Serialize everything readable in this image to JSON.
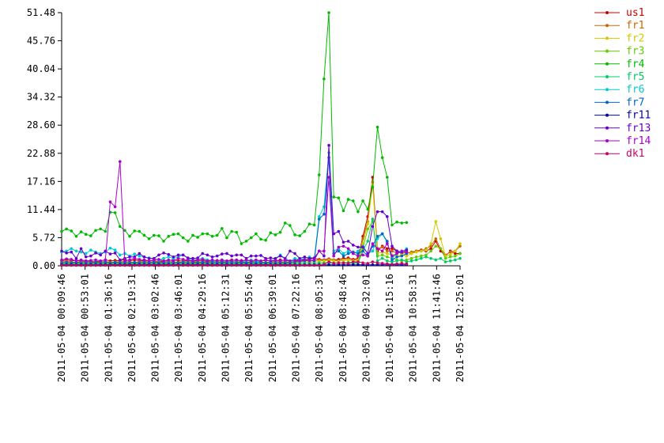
{
  "chart_data": {
    "type": "line",
    "grid": false,
    "legend_position": "right",
    "ylim": [
      0,
      51.48
    ],
    "y_ticks": [
      "0.00",
      "5.72",
      "11.44",
      "17.16",
      "22.88",
      "28.60",
      "34.32",
      "40.04",
      "45.76",
      "51.48"
    ],
    "x_tick_labels": [
      "2011-05-04 00:09:46",
      "2011-05-04 00:53:01",
      "2011-05-04 01:36:16",
      "2011-05-04 02:19:31",
      "2011-05-04 03:02:46",
      "2011-05-04 03:46:01",
      "2011-05-04 04:29:16",
      "2011-05-04 05:12:31",
      "2011-05-04 05:55:46",
      "2011-05-04 06:39:01",
      "2011-05-04 07:22:16",
      "2011-05-04 08:05:31",
      "2011-05-04 08:48:46",
      "2011-05-04 09:32:01",
      "2011-05-04 10:15:16",
      "2011-05-04 10:58:31",
      "2011-05-04 11:41:46",
      "2011-05-04 12:25:01"
    ],
    "x_time_start": "2011-05-04 00:09:46",
    "x_interval_seconds": 519,
    "series": [
      {
        "name": "us1",
        "color": "#cc0000",
        "values": [
          1.0,
          1.2,
          1.0,
          1.1,
          0.9,
          1.0,
          0.9,
          0.8,
          1.0,
          1.2,
          1.0,
          1.1,
          1.0,
          1.3,
          1.0,
          1.2,
          1.0,
          1.1,
          1.0,
          1.0,
          0.9,
          1.0,
          1.1,
          1.2,
          1.0,
          1.0,
          1.1,
          1.0,
          1.0,
          1.0,
          0.9,
          1.0,
          1.1,
          0.9,
          1.0,
          1.2,
          1.0,
          1.1,
          1.0,
          1.0,
          0.9,
          1.0,
          1.1,
          1.0,
          1.0,
          1.2,
          1.0,
          1.0,
          1.1,
          1.3,
          1.2,
          1.4,
          1.5,
          1.3,
          1.2,
          1.4,
          1.2,
          1.3,
          1.5,
          1.6,
          1.3,
          1.5,
          6.0,
          10.0,
          18.0,
          3.0,
          4.0,
          3.5,
          3.5,
          3.0,
          2.5,
          2.8,
          2.5,
          3.0,
          3.2,
          3.0,
          3.5,
          5.0,
          3.0,
          2.0,
          3.0,
          2.5,
          2.5
        ]
      },
      {
        "name": "fr1",
        "color": "#cc6600",
        "values": [
          0.8,
          0.9,
          0.8,
          0.7,
          0.8,
          0.9,
          0.8,
          0.7,
          0.8,
          0.9,
          0.7,
          0.8,
          0.8,
          0.9,
          0.8,
          0.7,
          0.8,
          0.9,
          0.8,
          0.7,
          0.8,
          0.8,
          0.9,
          0.8,
          0.7,
          0.8,
          0.9,
          0.8,
          0.8,
          0.7,
          0.8,
          0.9,
          0.8,
          0.7,
          0.8,
          0.9,
          0.8,
          0.8,
          0.7,
          0.8,
          0.9,
          0.8,
          0.7,
          0.8,
          0.9,
          0.8,
          0.8,
          0.7,
          0.9,
          1.0,
          1.1,
          1.2,
          1.0,
          1.2,
          1.1,
          1.3,
          1.2,
          1.0,
          1.2,
          1.3,
          1.1,
          1.2,
          5.5,
          9.0,
          17.0,
          3.5,
          3.8,
          3.0,
          3.0,
          2.6,
          2.8,
          2.5,
          2.8,
          3.0,
          3.0,
          3.5,
          4.0,
          5.5,
          3.5,
          2.2,
          2.8,
          3.0,
          4.0
        ]
      },
      {
        "name": "fr2",
        "color": "#cccc00",
        "values": [
          0.5,
          0.6,
          0.5,
          0.6,
          0.5,
          0.6,
          0.5,
          0.6,
          0.5,
          0.6,
          0.5,
          0.6,
          0.5,
          0.6,
          0.5,
          0.6,
          0.5,
          0.6,
          0.5,
          0.6,
          0.5,
          0.6,
          0.5,
          0.6,
          0.5,
          0.6,
          0.5,
          0.6,
          0.5,
          0.6,
          0.5,
          0.6,
          0.5,
          0.6,
          0.5,
          0.6,
          0.5,
          0.6,
          0.5,
          0.6,
          0.5,
          0.6,
          0.5,
          0.6,
          0.5,
          0.6,
          0.5,
          0.6,
          0.7,
          0.8,
          0.9,
          0.8,
          1.0,
          0.9,
          1.0,
          1.1,
          1.0,
          0.9,
          1.1,
          1.2,
          1.0,
          1.1,
          4.5,
          8.5,
          16.5,
          2.5,
          2.8,
          2.5,
          2.2,
          2.0,
          2.2,
          2.0,
          2.5,
          2.8,
          3.0,
          3.2,
          4.5,
          9.0,
          5.5,
          2.0,
          2.2,
          3.0,
          4.5
        ]
      },
      {
        "name": "fr3",
        "color": "#66cc00",
        "values": [
          0.3,
          0.4,
          0.3,
          0.4,
          0.3,
          0.4,
          0.3,
          0.4,
          0.3,
          0.4,
          0.3,
          0.4,
          0.3,
          0.4,
          0.3,
          0.4,
          0.3,
          0.4,
          0.3,
          0.4,
          0.3,
          0.4,
          0.3,
          0.4,
          0.3,
          0.4,
          0.3,
          0.4,
          0.3,
          0.4,
          0.3,
          0.4,
          0.3,
          0.4,
          0.3,
          0.4,
          0.3,
          0.4,
          0.3,
          0.4,
          0.3,
          0.4,
          0.3,
          0.4,
          0.3,
          0.4,
          0.3,
          0.4,
          0.4,
          0.5,
          0.6,
          0.5,
          0.6,
          0.5,
          0.6,
          0.7,
          0.6,
          0.5,
          0.6,
          0.7,
          0.6,
          0.7,
          3.5,
          7.5,
          9.0,
          2.0,
          2.2,
          1.8,
          1.5,
          1.2,
          1.0,
          1.2,
          1.5,
          1.8,
          2.0,
          2.2,
          3.0,
          4.0,
          3.5,
          1.5,
          1.8,
          2.0,
          2.5
        ]
      },
      {
        "name": "fr4",
        "color": "#00bb00",
        "values": [
          7.0,
          7.5,
          7.1,
          6.0,
          6.9,
          6.4,
          6.1,
          7.2,
          7.5,
          7.0,
          10.9,
          10.8,
          8.0,
          7.2,
          6.0,
          7.1,
          7.0,
          6.2,
          5.5,
          6.2,
          6.1,
          5.0,
          6.0,
          6.4,
          6.5,
          5.7,
          5.0,
          6.2,
          5.8,
          6.5,
          6.5,
          6.0,
          6.2,
          7.6,
          5.7,
          7.0,
          6.8,
          4.5,
          5.0,
          5.7,
          6.5,
          5.4,
          5.2,
          6.7,
          6.3,
          6.8,
          8.7,
          8.2,
          6.3,
          6.1,
          7.0,
          8.5,
          8.3,
          18.5,
          38.0,
          51.48,
          14.0,
          13.8,
          11.2,
          13.5,
          13.2,
          11.0,
          13.2,
          11.5,
          16.0,
          28.2,
          22.0,
          18.0,
          8.3,
          8.9,
          8.7,
          8.8
        ]
      },
      {
        "name": "fr5",
        "color": "#00cc66",
        "values": [
          0.4,
          0.5,
          0.4,
          0.5,
          0.4,
          0.5,
          0.4,
          0.5,
          0.4,
          0.5,
          0.4,
          0.5,
          0.4,
          0.5,
          0.4,
          0.5,
          0.4,
          0.5,
          0.4,
          0.5,
          0.4,
          0.5,
          0.4,
          0.5,
          0.4,
          0.5,
          0.4,
          0.5,
          0.4,
          0.5,
          0.4,
          0.5,
          0.4,
          0.5,
          0.4,
          0.5,
          0.4,
          0.5,
          0.4,
          0.5,
          0.4,
          0.5,
          0.4,
          0.5,
          0.4,
          0.5,
          0.4,
          0.5,
          0.5,
          0.6,
          0.5,
          0.6,
          0.5,
          0.6,
          0.5,
          0.6,
          0.5,
          0.6,
          0.5,
          0.6,
          0.5,
          0.6,
          3.0,
          5.0,
          9.5,
          1.0,
          1.5,
          1.0,
          0.8,
          1.0,
          1.2,
          0.8,
          1.0,
          1.2,
          1.5,
          1.8,
          1.5,
          1.2,
          1.5,
          0.8,
          1.0,
          1.2,
          1.5
        ]
      },
      {
        "name": "fr6",
        "color": "#00cccc",
        "values": [
          2.8,
          3.0,
          3.5,
          3.0,
          2.8,
          2.5,
          3.2,
          2.8,
          2.5,
          2.8,
          3.6,
          3.2,
          2.2,
          2.5,
          2.0,
          2.4,
          2.0,
          1.8,
          1.6,
          1.5,
          1.2,
          1.5,
          1.8,
          1.5,
          1.8,
          2.2,
          1.5,
          1.2,
          1.3,
          1.5,
          1.2,
          1.0,
          0.9,
          1.2,
          0.8,
          1.0,
          1.2,
          0.8,
          1.0,
          1.2,
          0.8,
          1.0,
          1.2,
          1.0,
          1.5,
          2.2,
          1.5,
          1.0,
          1.5,
          1.3,
          1.5,
          1.8,
          1.5,
          10.0,
          12.0,
          23.0,
          3.0,
          3.5,
          2.5,
          3.0,
          2.5,
          3.0,
          4.0,
          2.5,
          3.0,
          5.5,
          6.5,
          4.8,
          1.5,
          2.5,
          2.8,
          3.5
        ]
      },
      {
        "name": "fr7",
        "color": "#0066cc",
        "values": [
          0.6,
          0.7,
          0.6,
          0.7,
          0.6,
          0.7,
          0.6,
          0.7,
          0.6,
          0.7,
          0.6,
          0.7,
          0.6,
          0.7,
          0.6,
          0.7,
          0.6,
          0.7,
          0.6,
          0.7,
          0.6,
          0.7,
          0.6,
          0.7,
          0.6,
          0.7,
          0.6,
          0.7,
          0.6,
          0.7,
          0.6,
          0.7,
          0.6,
          0.7,
          0.6,
          0.7,
          0.6,
          0.7,
          0.6,
          0.7,
          0.6,
          0.7,
          0.6,
          0.7,
          0.6,
          0.7,
          0.6,
          0.7,
          0.8,
          0.9,
          1.0,
          1.1,
          1.0,
          9.5,
          10.5,
          22.0,
          2.5,
          3.0,
          2.0,
          2.5,
          2.8,
          2.5,
          3.0,
          2.0,
          4.0,
          6.0,
          6.5,
          5.0,
          1.2,
          1.8,
          2.0,
          2.5
        ]
      },
      {
        "name": "fr11",
        "color": "#0000aa",
        "values": [
          0.2,
          0.2,
          0.2,
          0.2,
          0.2,
          0.2,
          0.2,
          0.2,
          0.2,
          0.2,
          0.2,
          0.2,
          0.2,
          0.2,
          0.2,
          0.2,
          0.2,
          0.2,
          0.2,
          0.2,
          0.2,
          0.2,
          0.2,
          0.2,
          0.2,
          0.2,
          0.2,
          0.2,
          0.2,
          0.2,
          0.2,
          0.2,
          0.2,
          0.2,
          0.2,
          0.2,
          0.2,
          0.2,
          0.2,
          0.2,
          0.2,
          0.2,
          0.2,
          0.2,
          0.2,
          0.2,
          0.2,
          0.2,
          0.2,
          0.2,
          0.2,
          0.2,
          0.2,
          0.2,
          0.2,
          0.2,
          0.2,
          0.2,
          0.2,
          0.2,
          0.2,
          0.2,
          0.2,
          0.2,
          0.2,
          0.2,
          0.2,
          0.2,
          0.2,
          0.2,
          0.2,
          0.2
        ]
      },
      {
        "name": "fr13",
        "color": "#6600cc",
        "values": [
          3.0,
          2.6,
          2.8,
          1.5,
          3.5,
          1.8,
          2.0,
          2.6,
          2.2,
          3.0,
          2.4,
          2.6,
          1.2,
          1.5,
          1.8,
          1.8,
          2.5,
          1.8,
          1.5,
          1.5,
          2.2,
          2.6,
          2.3,
          1.8,
          2.2,
          2.2,
          1.6,
          1.5,
          1.6,
          2.5,
          2.2,
          1.8,
          2.0,
          2.4,
          2.5,
          2.0,
          2.2,
          2.2,
          1.5,
          2.0,
          2.0,
          2.1,
          1.5,
          1.6,
          1.5,
          2.0,
          1.5,
          3.0,
          2.5,
          1.5,
          1.8,
          1.5,
          1.6,
          3.0,
          2.0,
          24.5,
          6.5,
          7.0,
          4.8,
          5.0,
          4.2,
          3.8,
          3.8,
          2.5,
          8.0,
          11.0,
          11.0,
          10.0,
          4.0,
          3.0,
          2.8,
          3.2
        ]
      },
      {
        "name": "fr14",
        "color": "#aa00cc",
        "values": [
          1.2,
          1.4,
          1.3,
          1.0,
          1.2,
          1.0,
          1.1,
          1.2,
          1.0,
          1.2,
          13.0,
          12.0,
          21.2,
          1.0,
          1.2,
          1.5,
          1.3,
          1.2,
          1.0,
          1.2,
          1.3,
          1.0,
          1.2,
          1.0,
          1.5,
          1.3,
          1.2,
          1.0,
          1.2,
          1.3,
          1.0,
          1.2,
          1.0,
          1.2,
          1.0,
          1.1,
          1.2,
          1.0,
          1.2,
          1.0,
          1.2,
          1.0,
          1.2,
          1.0,
          1.1,
          1.0,
          1.2,
          1.0,
          1.1,
          1.0,
          1.2,
          1.0,
          1.2,
          3.0,
          3.0,
          18.0,
          2.0,
          3.8,
          4.0,
          3.5,
          2.5,
          2.0,
          2.2,
          2.0,
          4.5,
          3.5,
          3.0,
          4.5,
          2.0,
          2.5,
          3.0,
          2.8
        ]
      },
      {
        "name": "dk1",
        "color": "#cc0066",
        "values": [
          0.1,
          0.1,
          0.1,
          0.1,
          0.1,
          0.1,
          0.1,
          0.1,
          0.1,
          0.1,
          0.1,
          0.1,
          0.1,
          0.1,
          0.1,
          0.1,
          0.1,
          0.1,
          0.1,
          0.1,
          0.1,
          0.1,
          0.1,
          0.1,
          0.1,
          0.1,
          0.1,
          0.1,
          0.1,
          0.1,
          0.1,
          0.1,
          0.1,
          0.1,
          0.1,
          0.1,
          0.1,
          0.1,
          0.1,
          0.1,
          0.1,
          0.1,
          0.1,
          0.1,
          0.1,
          0.1,
          0.1,
          0.1,
          0.1,
          0.1,
          0.1,
          0.1,
          0.1,
          0.1,
          0.3,
          0.8,
          0.5,
          0.6,
          0.6,
          0.5,
          0.8,
          0.8,
          0.6,
          0.5,
          0.8,
          0.6,
          0.5,
          0.4,
          0.3,
          0.4,
          0.5,
          0.4
        ]
      }
    ]
  }
}
